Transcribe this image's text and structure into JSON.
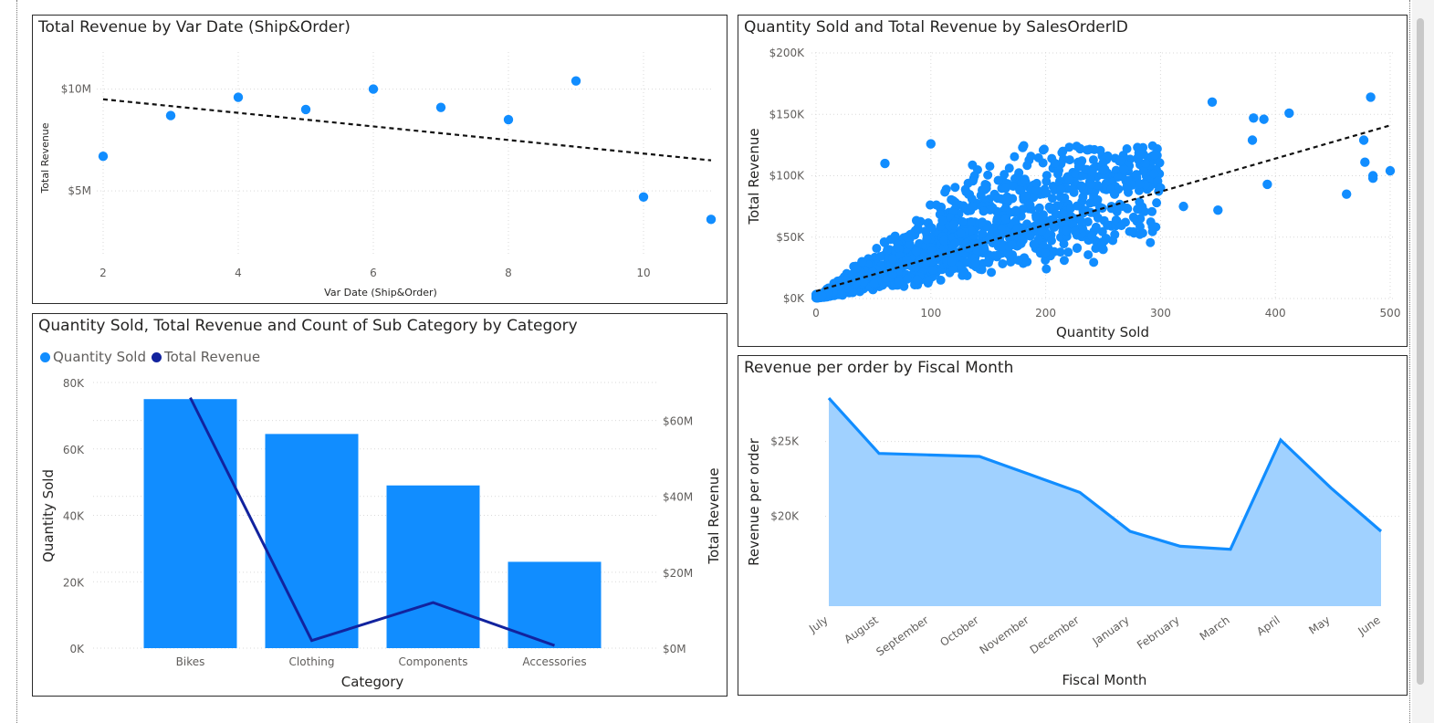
{
  "chart_data": [
    {
      "id": "c1",
      "type": "scatter",
      "title": "Total Revenue by Var Date (Ship&Order)",
      "xlabel": "Var Date (Ship&Order)",
      "ylabel": "Total Revenue",
      "xlim": [
        2,
        11
      ],
      "ylim": [
        2000000,
        12000000
      ],
      "x_ticks": [
        2,
        4,
        6,
        8,
        10
      ],
      "y_ticks": [
        {
          "value": 5000000,
          "label": "$5M"
        },
        {
          "value": 10000000,
          "label": "$10M"
        }
      ],
      "points": [
        {
          "x": 2,
          "y": 6700000
        },
        {
          "x": 3,
          "y": 8700000
        },
        {
          "x": 4,
          "y": 9600000
        },
        {
          "x": 5,
          "y": 9000000
        },
        {
          "x": 6,
          "y": 10000000
        },
        {
          "x": 7,
          "y": 9100000
        },
        {
          "x": 8,
          "y": 8500000
        },
        {
          "x": 9,
          "y": 10400000
        },
        {
          "x": 10,
          "y": 4700000
        },
        {
          "x": 11,
          "y": 3600000
        }
      ],
      "trendline": {
        "x": [
          2,
          11
        ],
        "y": [
          9500000,
          6500000
        ],
        "style": "dashed"
      },
      "grid": true,
      "point_color": "#118DFF"
    },
    {
      "id": "c2",
      "type": "scatter",
      "title": "Quantity Sold and Total Revenue by SalesOrderID",
      "xlabel": "Quantity Sold",
      "ylabel": "Total Revenue",
      "xlim": [
        0,
        500
      ],
      "ylim": [
        0,
        200000
      ],
      "x_ticks": [
        0,
        100,
        200,
        300,
        400,
        500
      ],
      "y_ticks": [
        {
          "value": 0,
          "label": "$0K"
        },
        {
          "value": 50000,
          "label": "$50K"
        },
        {
          "value": 100000,
          "label": "$100K"
        },
        {
          "value": 150000,
          "label": "$150K"
        },
        {
          "value": 200000,
          "label": "$200K"
        }
      ],
      "points_note": "Dense cloud of sales orders; representative points below",
      "points": [
        {
          "x": 345,
          "y": 160000
        },
        {
          "x": 483,
          "y": 164000
        },
        {
          "x": 412,
          "y": 151000
        },
        {
          "x": 381,
          "y": 147000
        },
        {
          "x": 390,
          "y": 146000
        },
        {
          "x": 380,
          "y": 129000
        },
        {
          "x": 477,
          "y": 129000
        },
        {
          "x": 478,
          "y": 111000
        },
        {
          "x": 500,
          "y": 104000
        },
        {
          "x": 485,
          "y": 100000
        },
        {
          "x": 485,
          "y": 98000
        },
        {
          "x": 462,
          "y": 85000
        },
        {
          "x": 393,
          "y": 93000
        },
        {
          "x": 100,
          "y": 126000
        },
        {
          "x": 180,
          "y": 123000
        },
        {
          "x": 230,
          "y": 122000
        },
        {
          "x": 295,
          "y": 117000
        },
        {
          "x": 60,
          "y": 110000
        },
        {
          "x": 260,
          "y": 85000
        },
        {
          "x": 300,
          "y": 90000
        },
        {
          "x": 320,
          "y": 75000
        },
        {
          "x": 350,
          "y": 72000
        },
        {
          "x": 250,
          "y": 40000
        },
        {
          "x": 150,
          "y": 30000
        },
        {
          "x": 120,
          "y": 60000
        },
        {
          "x": 80,
          "y": 50000
        },
        {
          "x": 40,
          "y": 30000
        },
        {
          "x": 20,
          "y": 10000
        },
        {
          "x": 10,
          "y": 5000
        },
        {
          "x": 5,
          "y": 2000
        }
      ],
      "trendline": {
        "x": [
          0,
          500
        ],
        "y": [
          6000,
          141000
        ],
        "style": "dashed"
      },
      "grid": true,
      "point_color": "#118DFF"
    },
    {
      "id": "c3",
      "type": "bar",
      "title": "Quantity Sold, Total Revenue and Count of Sub Category by Category",
      "xlabel": "Category",
      "ylabel": "Quantity Sold",
      "y2label": "Total Revenue",
      "categories": [
        "Bikes",
        "Clothing",
        "Components",
        "Accessories"
      ],
      "ylim": [
        0,
        80000
      ],
      "y_ticks": [
        {
          "value": 0,
          "label": "0K"
        },
        {
          "value": 20000,
          "label": "20K"
        },
        {
          "value": 40000,
          "label": "40K"
        },
        {
          "value": 60000,
          "label": "60K"
        },
        {
          "value": 80000,
          "label": "80K"
        }
      ],
      "y2lim": [
        0,
        70000000
      ],
      "y2_ticks": [
        {
          "value": 0,
          "label": "$0M"
        },
        {
          "value": 20000000,
          "label": "$20M"
        },
        {
          "value": 40000000,
          "label": "$40M"
        },
        {
          "value": 60000000,
          "label": "$60M"
        }
      ],
      "legend": [
        {
          "name": "Quantity Sold",
          "color": "#118DFF"
        },
        {
          "name": "Total Revenue",
          "color": "#12239E"
        }
      ],
      "legend_position": "top-left",
      "series": [
        {
          "name": "Quantity Sold",
          "kind": "bar",
          "axis": "left",
          "color": "#118DFF",
          "values": [
            75000,
            64500,
            49000,
            26000
          ]
        },
        {
          "name": "Total Revenue",
          "kind": "line",
          "axis": "right",
          "color": "#12239E",
          "values": [
            66000000,
            2000000,
            12000000,
            700000
          ]
        }
      ],
      "grid": true
    },
    {
      "id": "c4",
      "type": "area",
      "title": "Revenue per order by Fiscal Month",
      "xlabel": "Fiscal Month",
      "ylabel": "Revenue per order",
      "categories": [
        "July",
        "August",
        "September",
        "October",
        "November",
        "December",
        "January",
        "February",
        "March",
        "April",
        "May",
        "June"
      ],
      "values": [
        27900,
        24200,
        24100,
        24000,
        22800,
        21600,
        19000,
        18000,
        17800,
        25100,
        21900,
        19000
      ],
      "ylim": [
        14000,
        29000
      ],
      "y_ticks": [
        {
          "value": 20000,
          "label": "$20K"
        },
        {
          "value": 25000,
          "label": "$25K"
        }
      ],
      "line_color": "#118DFF",
      "fill_color": "#A0D1FF",
      "grid": true
    }
  ]
}
